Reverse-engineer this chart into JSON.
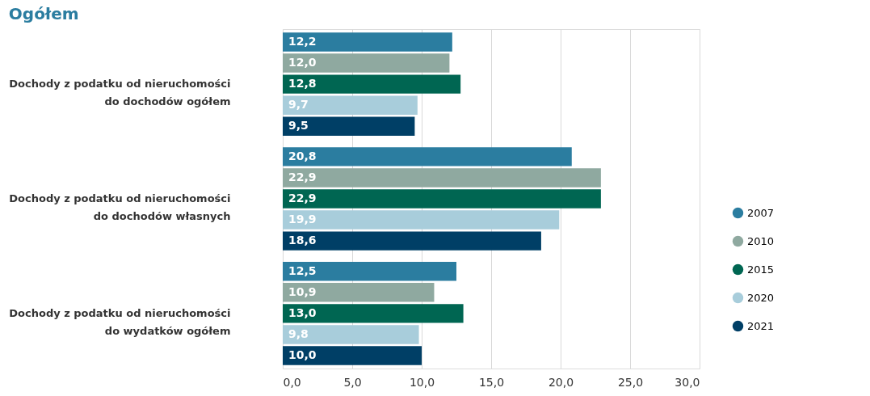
{
  "chart_data": {
    "type": "bar",
    "orientation": "horizontal",
    "title": "Ogółem",
    "categories": [
      "Dochody z podatku od nieruchomości do dochodów ogółem",
      "Dochody z podatku od nieruchomości do dochodów własnych",
      "Dochody z podatku od nieruchomości do wydatków ogółem"
    ],
    "series": [
      {
        "name": "2007",
        "color": "#2b7da0",
        "values": [
          12.2,
          20.8,
          12.5
        ],
        "value_labels": [
          "12,2",
          "20,8",
          "12,5"
        ]
      },
      {
        "name": "2010",
        "color": "#8fa9a0",
        "values": [
          12.0,
          22.9,
          10.9
        ],
        "value_labels": [
          "12,0",
          "22,9",
          "10,9"
        ]
      },
      {
        "name": "2015",
        "color": "#006652",
        "values": [
          12.8,
          22.9,
          13.0
        ],
        "value_labels": [
          "12,8",
          "22,9",
          "13,0"
        ]
      },
      {
        "name": "2020",
        "color": "#a8cddb",
        "values": [
          9.7,
          19.9,
          9.8
        ],
        "value_labels": [
          "9,7",
          "19,9",
          "9,8"
        ]
      },
      {
        "name": "2021",
        "color": "#003f66",
        "values": [
          9.5,
          18.6,
          10.0
        ],
        "value_labels": [
          "9,5",
          "18,6",
          "10,0"
        ]
      }
    ],
    "xlim": [
      0,
      30
    ],
    "xticks": [
      {
        "value": 0,
        "label": "0,0"
      },
      {
        "value": 5,
        "label": "5,0"
      },
      {
        "value": 10,
        "label": "10,0"
      },
      {
        "value": 15,
        "label": "15,0"
      },
      {
        "value": 20,
        "label": "20,0"
      },
      {
        "value": 25,
        "label": "25,0"
      },
      {
        "value": 30,
        "label": "30,0"
      }
    ],
    "grid": "x",
    "legend": "bottom right"
  }
}
